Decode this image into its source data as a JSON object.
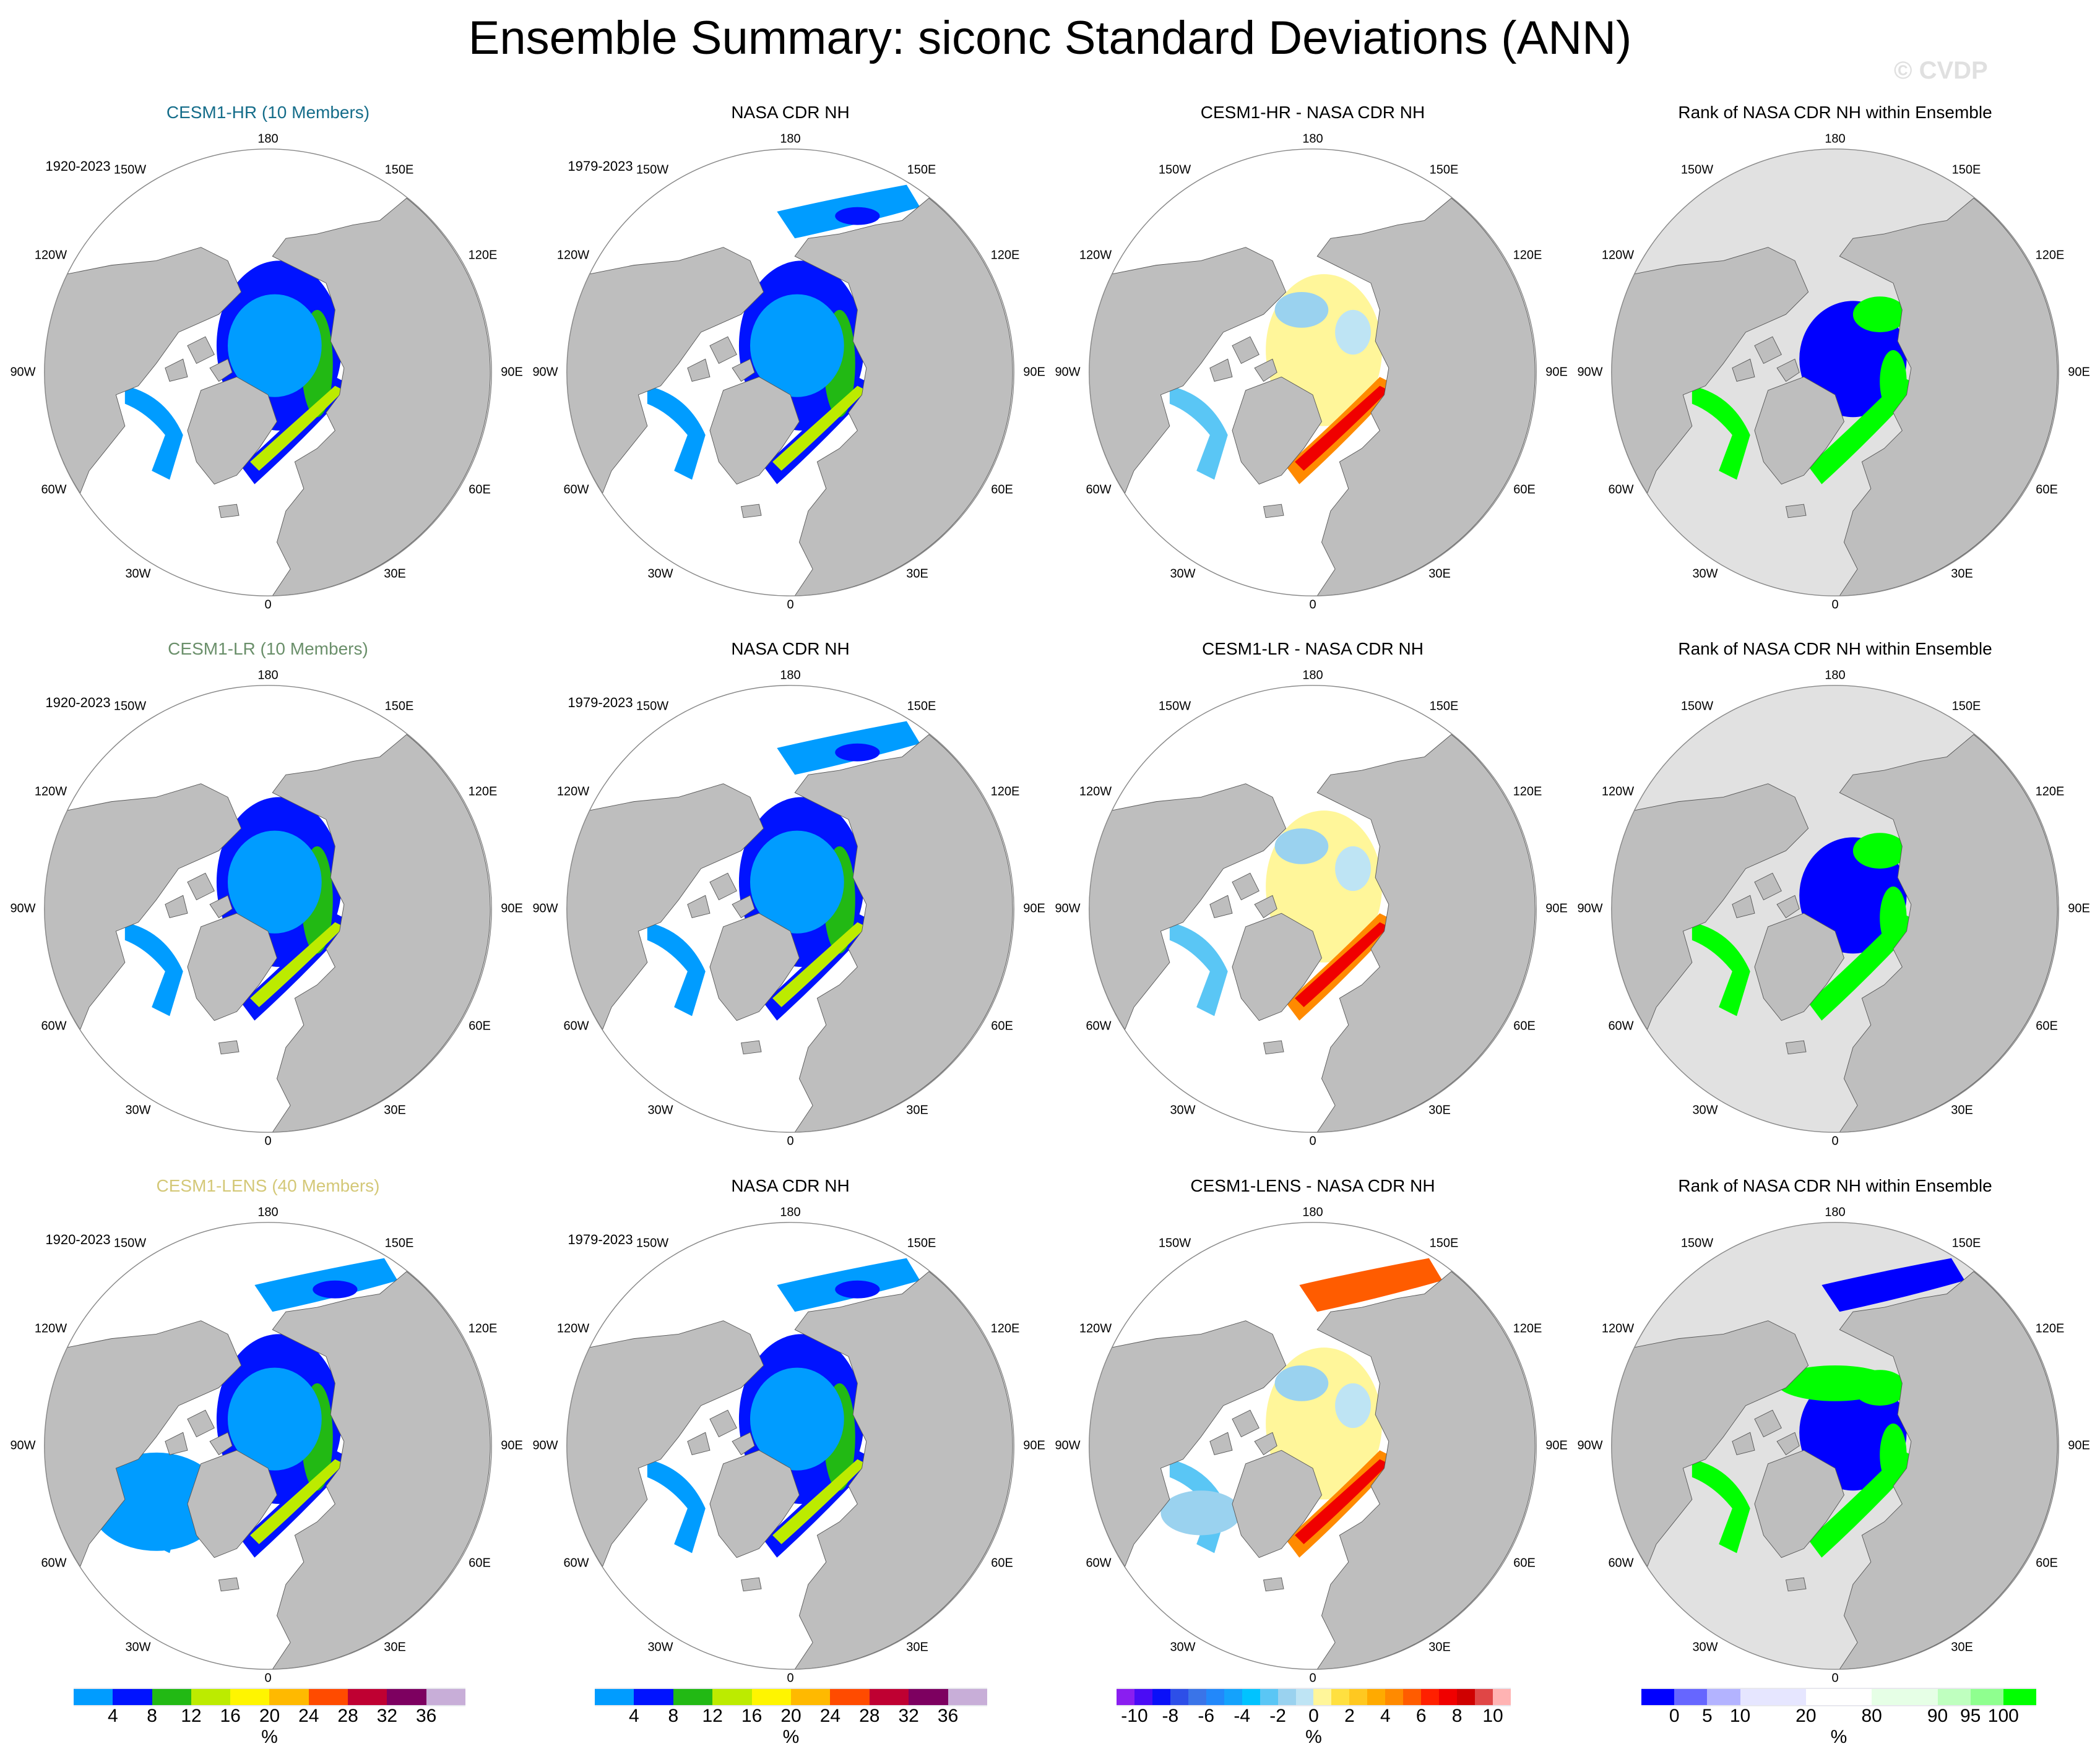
{
  "title": "Ensemble Summary: siconc Standard Deviations (ANN)",
  "watermark": "© CVDP",
  "longitude_labels": [
    "180",
    "150W",
    "150E",
    "120W",
    "120E",
    "90W",
    "90E",
    "60W",
    "60E",
    "30W",
    "30E",
    "0"
  ],
  "panels": [
    {
      "title": "CESM1-HR (10 Members)",
      "title_color": "#156d8a",
      "years": "1920-2023"
    },
    {
      "title": "NASA CDR NH",
      "title_color": "#000000",
      "years": "1979-2023"
    },
    {
      "title": "CESM1-HR - NASA CDR NH",
      "title_color": "#000000",
      "years": ""
    },
    {
      "title": "Rank of NASA CDR NH within Ensemble",
      "title_color": "#000000",
      "years": ""
    },
    {
      "title": "CESM1-LR (10 Members)",
      "title_color": "#6a8f6a",
      "years": "1920-2023"
    },
    {
      "title": "NASA CDR NH",
      "title_color": "#000000",
      "years": "1979-2023"
    },
    {
      "title": "CESM1-LR - NASA CDR NH",
      "title_color": "#000000",
      "years": ""
    },
    {
      "title": "Rank of NASA CDR NH within Ensemble",
      "title_color": "#000000",
      "years": ""
    },
    {
      "title": "CESM1-LENS (40 Members)",
      "title_color": "#d4c878",
      "years": "1920-2023"
    },
    {
      "title": "NASA CDR NH",
      "title_color": "#000000",
      "years": "1979-2023"
    },
    {
      "title": "CESM1-LENS - NASA CDR NH",
      "title_color": "#000000",
      "years": ""
    },
    {
      "title": "Rank of NASA CDR NH within Ensemble",
      "title_color": "#000000",
      "years": ""
    }
  ],
  "colors": {
    "land": "#bebebe",
    "ocean": "#ffffff",
    "rank_ocean": "#e1e1e1"
  },
  "chart_data": [
    {
      "type": "heatmap",
      "projection": "polar stereographic (NH)",
      "unit": "%",
      "colorbar_levels": [
        "4",
        "8",
        "12",
        "16",
        "20",
        "24",
        "28",
        "32",
        "36"
      ],
      "colorbar_colors": [
        "#009cff",
        "#0013ff",
        "#22b914",
        "#bceb00",
        "#fff500",
        "#ffb900",
        "#ff4b00",
        "#bf0032",
        "#7d0060",
        "#c8aed8"
      ],
      "colorbar_weights": [
        1,
        1,
        1,
        1,
        1,
        1,
        1,
        1,
        1,
        1
      ]
    },
    {
      "type": "heatmap",
      "projection": "polar stereographic (NH)",
      "unit": "%",
      "colorbar_levels": [
        "4",
        "8",
        "12",
        "16",
        "20",
        "24",
        "28",
        "32",
        "36"
      ],
      "colorbar_colors": [
        "#009cff",
        "#0013ff",
        "#22b914",
        "#bceb00",
        "#fff500",
        "#ffb900",
        "#ff4b00",
        "#bf0032",
        "#7d0060",
        "#c8aed8"
      ],
      "colorbar_weights": [
        1,
        1,
        1,
        1,
        1,
        1,
        1,
        1,
        1,
        1
      ]
    },
    {
      "type": "heatmap",
      "projection": "polar stereographic (NH)",
      "unit": "%",
      "colorbar_levels": [
        "-10",
        "",
        "-8",
        "",
        "-6",
        "",
        "-4",
        "",
        "-2",
        "",
        "0",
        "",
        "2",
        "",
        "4",
        "",
        "6",
        "",
        "8",
        "",
        "10"
      ],
      "colorbar_colors": [
        "#8a1ef0",
        "#4a0cf5",
        "#0a10f8",
        "#2d4fe8",
        "#3a74e8",
        "#2288fa",
        "#14a2fc",
        "#00c3ff",
        "#5ac6f5",
        "#9ad2ef",
        "#bee4f4",
        "#fff69a",
        "#ffe040",
        "#ffc820",
        "#ffaa00",
        "#ff8a00",
        "#ff5c00",
        "#ff2000",
        "#f00000",
        "#cf0000",
        "#e04646",
        "#ffb3b3"
      ],
      "colorbar_weights": [
        1,
        1,
        1,
        1,
        1,
        1,
        1,
        1,
        1,
        1,
        1,
        1,
        1,
        1,
        1,
        1,
        1,
        1,
        1,
        1,
        1,
        1
      ]
    },
    {
      "type": "heatmap",
      "projection": "polar stereographic (NH)",
      "unit": "%",
      "colorbar_levels": [
        "0",
        "5",
        "10",
        "20",
        "80",
        "90",
        "95",
        "100"
      ],
      "colorbar_colors": [
        "#0000ff",
        "#6666ff",
        "#b3b3ff",
        "#e6e6ff",
        "#ffffff",
        "#e6ffe6",
        "#bfffbf",
        "#8fff8f",
        "#00ff00"
      ],
      "colorbar_weights": [
        1,
        1,
        1,
        2,
        2,
        2,
        1,
        1,
        1
      ]
    }
  ]
}
